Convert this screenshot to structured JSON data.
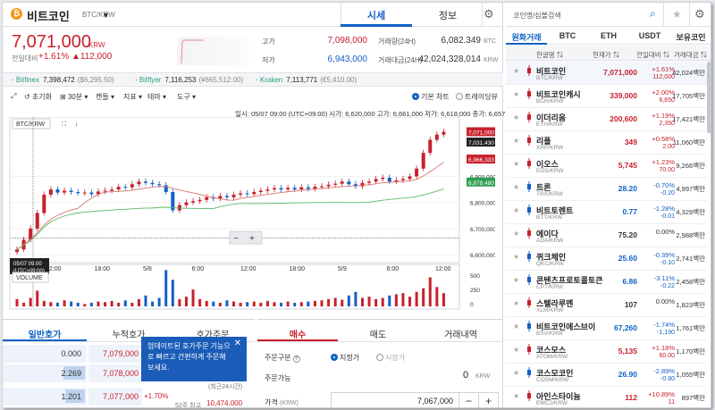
{
  "coin": {
    "name": "비트코인",
    "pair": "BTC/KRW",
    "logo": "₿"
  },
  "top_tabs": [
    "시세",
    "정보"
  ],
  "price": {
    "value": "7,071,000",
    "unit": "KRW",
    "prev_label": "전일대비",
    "change_pct": "+1.61%",
    "change_amt": "▲112,000"
  },
  "stats": {
    "high_label": "고가",
    "high": "7,098,000",
    "low_label": "저가",
    "low": "6,943,000",
    "vol_label": "거래량(24H)",
    "vol": "6,082.349",
    "vol_unit": "BTC",
    "amt_label": "거래대금(24H)",
    "amt": "42,024,328,014",
    "amt_unit": "KRW"
  },
  "exchanges": [
    {
      "name": "Bitfinex",
      "value": "7,398,472",
      "usd": "($6,295.50)"
    },
    {
      "name": "Bitflyer",
      "value": "7,116,253",
      "usd": "(¥665,512.00)"
    },
    {
      "name": "Kraken",
      "value": "7,113,771",
      "usd": "(€5,410.00)"
    }
  ],
  "toolbar": {
    "reset": "초기화",
    "interval": "30분",
    "candle": "캔들",
    "indicator": "지표",
    "theme": "테마",
    "tools": "도구",
    "basic_chart": "기본 차트",
    "tradingview": "트레이딩뷰"
  },
  "ohlc_text": "일시: 05/07 09:00 (UTC+09:00)  시가: 6,620,000  고가: 6,661,000  저가: 6,618,000  종가: 6,657,000  거래량: 130.092",
  "chart_data": {
    "type": "candlestick",
    "series_label": "BTC/KRW",
    "volume_label": "VOLUME",
    "x_ticks": [
      "12:00",
      "18:00",
      "5/8",
      "6:00",
      "12:00",
      "18:00",
      "5/9",
      "6:00",
      "12:00"
    ],
    "y_ticks": [
      "6,900,000",
      "6,800,000",
      "6,700,000",
      "6,600,000"
    ],
    "price_tags": [
      "7,071,000",
      "7,031,430",
      "6,966,333",
      "6,878,480"
    ],
    "cursor_tag": [
      "05/07 09:00",
      "(UTC+09:00)"
    ],
    "vol_ticks": [
      "500",
      "250",
      "0"
    ],
    "closes": [
      6620000,
      6657000,
      6700000,
      6760000,
      6830000,
      6850000,
      6838000,
      6845000,
      6840000,
      6836000,
      6838000,
      6832000,
      6842000,
      6845000,
      6850000,
      6860000,
      6858000,
      6870000,
      6880000,
      6875000,
      6870000,
      6866000,
      6840000,
      6770000,
      6790000,
      6800000,
      6805000,
      6810000,
      6820000,
      6815000,
      6825000,
      6820000,
      6830000,
      6835000,
      6832000,
      6840000,
      6845000,
      6850000,
      6855000,
      6850000,
      6856000,
      6850000,
      6858000,
      6852000,
      6860000,
      6862000,
      6868000,
      6872000,
      6880000,
      6870000,
      6862000,
      6875000,
      6880000,
      6890000,
      6895000,
      6880000,
      6885000,
      6890000,
      6900000,
      6930000,
      6990000,
      7040000,
      7060000,
      7071000
    ],
    "volumes": [
      120,
      60,
      140,
      260,
      90,
      70,
      60,
      100,
      80,
      60,
      40,
      60,
      80,
      70,
      90,
      60,
      100,
      60,
      120,
      180,
      80,
      140,
      600,
      440,
      120,
      160,
      280,
      120,
      90,
      80,
      60,
      100,
      80,
      60,
      70,
      80,
      60,
      90,
      70,
      60,
      80,
      60,
      70,
      80,
      90,
      100,
      120,
      140,
      110,
      180,
      240,
      140,
      160,
      120,
      140,
      180,
      200,
      220,
      160,
      240,
      300,
      480,
      320,
      220
    ]
  },
  "orderbook": {
    "tabs": [
      "일반호가",
      "누적호가",
      "호가주문"
    ],
    "rows": [
      {
        "qty": "0.000",
        "price": "7,079,000",
        "pct": ""
      },
      {
        "qty": "2.269",
        "price": "7,078,000",
        "pct": ""
      },
      {
        "qty": "1.201",
        "price": "7,077,000",
        "pct": "+1.70%"
      }
    ],
    "side_note_1": "(최근24시간)",
    "side_note_2_label": "52주 최고",
    "side_note_2_val": "10,474,000"
  },
  "tooltip": {
    "text": "업데이트된 호가주문 기능으로 빠르고 간편하게 주문해 보세요."
  },
  "order": {
    "tabs": [
      "매수",
      "매도",
      "거래내역"
    ],
    "type_label": "주문구분",
    "limit": "지정가",
    "market": "시장가",
    "avail_label": "주문가능",
    "avail_val": "0",
    "avail_unit": "KRW",
    "price_label": "가격",
    "price_unit": "(KRW)",
    "price_val": "7,067,000"
  },
  "market": {
    "search_placeholder": "코인명/심볼검색",
    "tabs": [
      "원화거래",
      "BTC",
      "ETH",
      "USDT",
      "보유코인"
    ],
    "headers": [
      "한글명",
      "현재가",
      "전일대비",
      "거래대금"
    ],
    "rows": [
      {
        "name": "비트코인",
        "pair": "BTC/KRW",
        "price": "7,071,000",
        "pct": "+1.61%",
        "diff": "112,000",
        "vol": "42,024백만",
        "dir": "up"
      },
      {
        "name": "비트코인캐시",
        "pair": "BCH/KRW",
        "price": "339,000",
        "pct": "+2.00%",
        "diff": "6,650",
        "vol": "17,705백만",
        "dir": "up"
      },
      {
        "name": "이더리움",
        "pair": "ETH/KRW",
        "price": "200,600",
        "pct": "+1.19%",
        "diff": "2,350",
        "vol": "17,421백만",
        "dir": "up"
      },
      {
        "name": "리플",
        "pair": "XRP/KRW",
        "price": "349",
        "pct": "+0.58%",
        "diff": "2.00",
        "vol": "11,060백만",
        "dir": "up"
      },
      {
        "name": "이오스",
        "pair": "EOS/KRW",
        "price": "5,745",
        "pct": "+1.23%",
        "diff": "70.00",
        "vol": "9,266백만",
        "dir": "up"
      },
      {
        "name": "트론",
        "pair": "TRX/KRW",
        "price": "28.20",
        "pct": "-0.70%",
        "diff": "-0.20",
        "vol": "4,997백만",
        "dir": "down"
      },
      {
        "name": "비트토렌트",
        "pair": "BTT/KRW",
        "price": "0.77",
        "pct": "-1.28%",
        "diff": "-0.01",
        "vol": "4,329백만",
        "dir": "down"
      },
      {
        "name": "에이다",
        "pair": "ADA/KRW",
        "price": "75.20",
        "pct": "0.00%",
        "diff": "",
        "vol": "2,988백만",
        "dir": "flat"
      },
      {
        "name": "퀴크체인",
        "pair": "QKC/KRW",
        "price": "25.60",
        "pct": "-0.39%",
        "diff": "-0.10",
        "vol": "2,741백만",
        "dir": "down"
      },
      {
        "name": "콘텐츠프로토콜토큰",
        "pair": "CPT/KRW",
        "price": "6.86",
        "pct": "-3.11%",
        "diff": "-0.22",
        "vol": "2,458백만",
        "dir": "down"
      },
      {
        "name": "스텔라루멘",
        "pair": "XLM/KRW",
        "price": "107",
        "pct": "0.00%",
        "diff": "",
        "vol": "1,823백만",
        "dir": "flat"
      },
      {
        "name": "비트코인에스브이",
        "pair": "BSV/KRW",
        "price": "67,260",
        "pct": "-1.74%",
        "diff": "-1,190",
        "vol": "1,761백만",
        "dir": "down"
      },
      {
        "name": "코스모스",
        "pair": "ATOM/KRW",
        "price": "5,135",
        "pct": "+1.18%",
        "diff": "60.00",
        "vol": "1,170백만",
        "dir": "up"
      },
      {
        "name": "코스모코인",
        "pair": "COSM/KRW",
        "price": "26.90",
        "pct": "-2.89%",
        "diff": "-0.80",
        "vol": "1,055백만",
        "dir": "down"
      },
      {
        "name": "아인스타이늄",
        "pair": "EMC2/KRW",
        "price": "112",
        "pct": "+10.89%",
        "diff": "11",
        "vol": "897백만",
        "dir": "up"
      }
    ]
  },
  "colors": {
    "up": "#c8202b",
    "down": "#1261c4",
    "accent": "#1261c4"
  }
}
